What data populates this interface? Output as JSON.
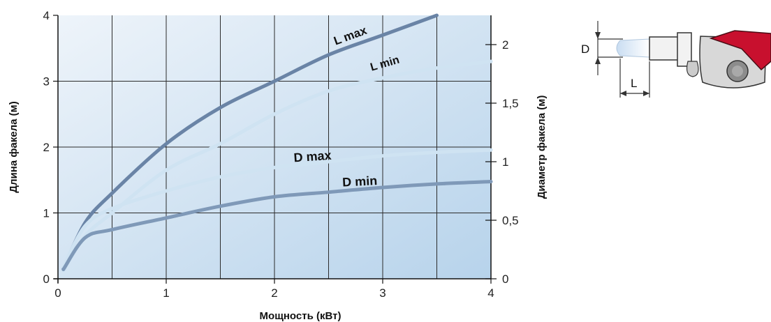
{
  "chart_data": {
    "type": "line",
    "xlabel": "Мощность (кВт)",
    "ylabel": "Длина факела (м)",
    "y2label": "Диаметр факела (м)",
    "x_ticks": [
      "0",
      "1",
      "2",
      "3",
      "4"
    ],
    "y_ticks": [
      "0",
      "1",
      "2",
      "3",
      "4"
    ],
    "y2_ticks": [
      "0",
      "0,5",
      "1",
      "1,5",
      "2"
    ],
    "xlim": [
      0,
      4
    ],
    "ylim": [
      0,
      4
    ],
    "y2lim": [
      0,
      2.25
    ],
    "grid": true,
    "series": [
      {
        "name": "L max",
        "axis": "left",
        "color": "#6a84a6",
        "x": [
          0.05,
          0.25,
          0.5,
          1,
          1.5,
          2,
          2.5,
          3,
          3.5
        ],
        "y": [
          0.15,
          0.85,
          1.3,
          2.05,
          2.6,
          3.0,
          3.4,
          3.7,
          4.0
        ]
      },
      {
        "name": "L min",
        "axis": "left",
        "color": "#cfe3f2",
        "x": [
          0.05,
          0.25,
          0.5,
          1,
          1.5,
          2,
          2.5,
          3,
          3.5,
          4
        ],
        "y": [
          0.12,
          0.65,
          1.0,
          1.65,
          2.05,
          2.5,
          2.85,
          3.05,
          3.2,
          3.3
        ]
      },
      {
        "name": "D max",
        "axis": "right",
        "color": "#cfe3f2",
        "x": [
          0.05,
          0.25,
          0.5,
          1,
          1.5,
          2,
          2.5,
          3,
          3.5,
          4
        ],
        "y": [
          0.1,
          0.45,
          0.6,
          0.75,
          0.87,
          0.95,
          1.0,
          1.05,
          1.08,
          1.1
        ]
      },
      {
        "name": "D min",
        "axis": "right",
        "color": "#7f99b8",
        "x": [
          0.05,
          0.25,
          0.5,
          1,
          1.5,
          2,
          2.5,
          3,
          3.5,
          4
        ],
        "y": [
          0.08,
          0.35,
          0.42,
          0.52,
          0.62,
          0.7,
          0.74,
          0.78,
          0.81,
          0.83
        ]
      }
    ]
  },
  "diagram": {
    "diameter_label": "D",
    "length_label": "L"
  }
}
